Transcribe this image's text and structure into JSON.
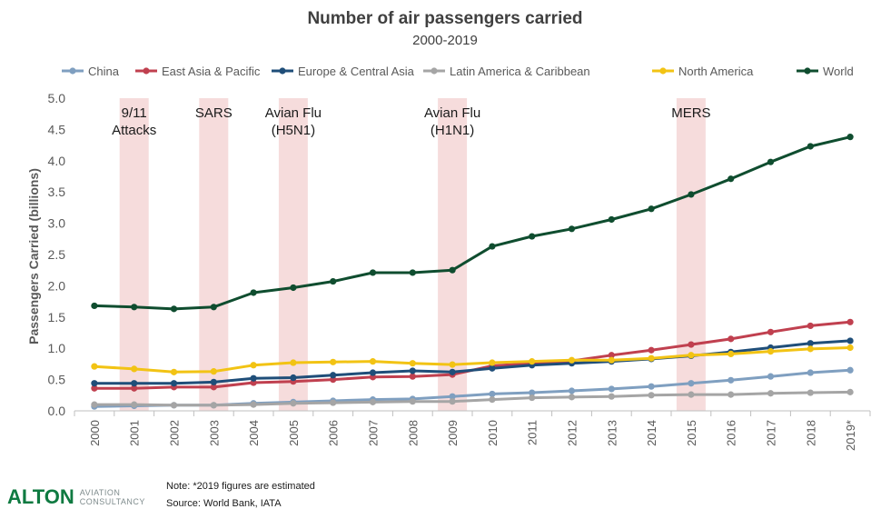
{
  "chart_data": {
    "type": "line",
    "title": "Number of air passengers carried",
    "subtitle": "2000-2019",
    "ylabel": "Passengers Carried (billions)",
    "xlabel": "",
    "ylim": [
      0,
      5
    ],
    "yticks": [
      "0.0",
      "0.5",
      "1.0",
      "1.5",
      "2.0",
      "2.5",
      "3.0",
      "3.5",
      "4.0",
      "4.5",
      "5.0"
    ],
    "categories": [
      "2000",
      "2001",
      "2002",
      "2003",
      "2004",
      "2005",
      "2006",
      "2007",
      "2008",
      "2009",
      "2010",
      "2011",
      "2012",
      "2013",
      "2014",
      "2015",
      "2016",
      "2017",
      "2018",
      "2019*"
    ],
    "legend_position": "top",
    "grid": false,
    "series": [
      {
        "name": "China",
        "color": "#7f9fc0",
        "values": [
          0.07,
          0.08,
          0.09,
          0.09,
          0.12,
          0.14,
          0.16,
          0.18,
          0.19,
          0.23,
          0.27,
          0.29,
          0.32,
          0.35,
          0.39,
          0.44,
          0.49,
          0.55,
          0.61,
          0.65
        ]
      },
      {
        "name": "East Asia & Pacific",
        "color": "#c0404f",
        "values": [
          0.36,
          0.36,
          0.38,
          0.38,
          0.45,
          0.47,
          0.5,
          0.54,
          0.55,
          0.58,
          0.72,
          0.76,
          0.8,
          0.89,
          0.97,
          1.06,
          1.15,
          1.26,
          1.36,
          1.42
        ]
      },
      {
        "name": "Europe & Central Asia",
        "color": "#1f4e79",
        "values": [
          0.44,
          0.44,
          0.44,
          0.46,
          0.52,
          0.53,
          0.57,
          0.61,
          0.64,
          0.62,
          0.68,
          0.73,
          0.76,
          0.79,
          0.83,
          0.88,
          0.94,
          1.01,
          1.08,
          1.12
        ]
      },
      {
        "name": "Latin America & Caribbean",
        "color": "#a5a5a5",
        "values": [
          0.1,
          0.1,
          0.09,
          0.09,
          0.1,
          0.12,
          0.13,
          0.14,
          0.15,
          0.15,
          0.18,
          0.21,
          0.22,
          0.23,
          0.25,
          0.26,
          0.26,
          0.28,
          0.29,
          0.3
        ]
      },
      {
        "name": "North America",
        "color": "#f2c314",
        "values": [
          0.71,
          0.67,
          0.62,
          0.63,
          0.73,
          0.77,
          0.78,
          0.79,
          0.76,
          0.74,
          0.77,
          0.79,
          0.81,
          0.81,
          0.84,
          0.89,
          0.91,
          0.95,
          0.99,
          1.01
        ]
      },
      {
        "name": "World",
        "color": "#0f4d2f",
        "values": [
          1.68,
          1.66,
          1.63,
          1.66,
          1.89,
          1.97,
          2.07,
          2.21,
          2.21,
          2.25,
          2.63,
          2.79,
          2.91,
          3.06,
          3.23,
          3.46,
          3.71,
          3.98,
          4.23,
          4.38
        ]
      }
    ],
    "events": [
      {
        "label_lines": [
          "9/11",
          "Attacks"
        ],
        "year": "2001"
      },
      {
        "label_lines": [
          "SARS"
        ],
        "year": "2003"
      },
      {
        "label_lines": [
          "Avian Flu",
          "(H5N1)"
        ],
        "year": "2005"
      },
      {
        "label_lines": [
          "Avian Flu",
          "(H1N1)"
        ],
        "year": "2009"
      },
      {
        "label_lines": [
          "MERS"
        ],
        "year": "2015"
      }
    ],
    "event_band_color": "#f6dcdc"
  },
  "footer": {
    "note": "Note: *2019 figures are estimated",
    "source": "Source: World Bank, IATA"
  },
  "logo": {
    "main": "ALTON",
    "sub_line1": "AVIATION",
    "sub_line2": "CONSULTANCY"
  }
}
